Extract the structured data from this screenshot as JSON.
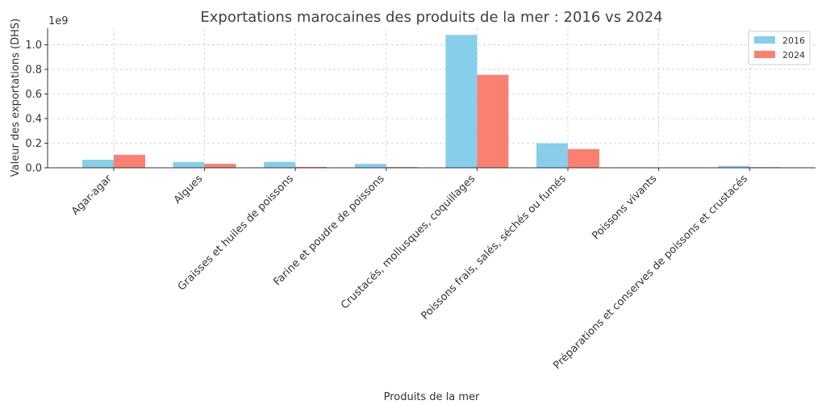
{
  "chart_data": {
    "type": "bar",
    "title": "Exportations marocaines des produits de la mer : 2016 vs 2024",
    "xlabel": "Produits de la mer",
    "ylabel": "Valeur des exportations (DHS)",
    "y_multiplier_label": "1e9",
    "categories": [
      "Agar-agar",
      "Algues",
      "Graisses et huiles de poissons",
      "Farine et poudre de poissons",
      "Crustacés, mollusques, coquillages",
      "Poissons frais, salés, séchés ou fumés",
      "Poissons vivants",
      "Préparations et conserves de poissons et crustacés"
    ],
    "series": [
      {
        "name": "2016",
        "color": "#87ceeb",
        "values": [
          0.065,
          0.047,
          0.048,
          0.032,
          1.08,
          0.198,
          0.004,
          0.015
        ]
      },
      {
        "name": "2024",
        "color": "#fa8072",
        "values": [
          0.105,
          0.032,
          0.007,
          0.006,
          0.755,
          0.152,
          0.001,
          0.005
        ]
      }
    ],
    "yticks": [
      "0.0",
      "0.2",
      "0.4",
      "0.6",
      "0.8",
      "1.0"
    ],
    "ytick_values": [
      0,
      0.2,
      0.4,
      0.6,
      0.8,
      1.0
    ],
    "ylim": [
      0,
      1.134
    ],
    "grid": true,
    "legend_position": "top-right"
  }
}
